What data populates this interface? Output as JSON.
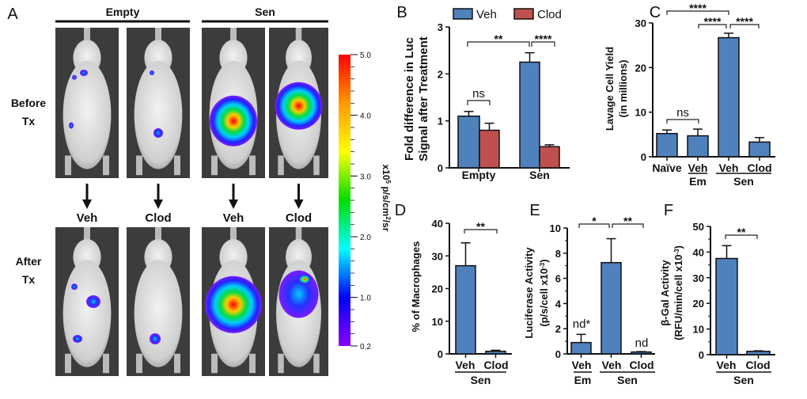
{
  "panel_a": {
    "label": "A",
    "groups": [
      "Empty",
      "Sen"
    ],
    "row_labels": [
      [
        "Before",
        "Tx"
      ],
      [
        "After",
        "Tx"
      ]
    ],
    "treatments": [
      "Veh",
      "Clod",
      "Veh",
      "Clod"
    ],
    "colorbar": {
      "ticks": [
        "5.0",
        "4.0",
        "3.0",
        "2.0",
        "1.0",
        "0.2"
      ],
      "unit_parts": [
        "x10",
        "5",
        " p/s/cm",
        "2",
        "/sr"
      ],
      "colors": [
        "#ff0000",
        "#ff9900",
        "#ffff00",
        "#00dd00",
        "#00ffff",
        "#0000ff",
        "#8800ff"
      ]
    }
  },
  "colors": {
    "veh": "#4f81bd",
    "clod": "#c0504d"
  },
  "chart_data": [
    {
      "panel": "B",
      "type": "bar",
      "categories": [
        "Empty",
        "Sen"
      ],
      "legend": [
        "Veh",
        "Clod"
      ],
      "legend_placement": "top",
      "series": [
        {
          "name": "Veh",
          "values": [
            1.1,
            2.25
          ],
          "errors": [
            0.1,
            0.2
          ]
        },
        {
          "name": "Clod",
          "values": [
            0.8,
            0.45
          ],
          "errors": [
            0.15,
            0.04
          ]
        }
      ],
      "ylabel": [
        "Fold difference in Luc",
        "Signal after Treatment"
      ],
      "ylim": [
        0,
        3
      ],
      "yticks": [
        "0",
        "1",
        "2",
        "3"
      ],
      "significance": [
        "ns",
        "**",
        "****"
      ]
    },
    {
      "panel": "C",
      "type": "bar",
      "categories": [
        "Naïve",
        "Veh",
        "Veh",
        "Clod"
      ],
      "groups": [
        "Em",
        "Sen"
      ],
      "values": [
        5.2,
        4.7,
        26.7,
        3.3
      ],
      "errors": [
        0.8,
        1.5,
        1.0,
        1.0
      ],
      "ylabel": [
        "Lavage Cell Yield",
        "(in millions)"
      ],
      "ylim": [
        0,
        30
      ],
      "yticks": [
        "0",
        "10",
        "20",
        "30"
      ],
      "significance": [
        "****",
        "****",
        "****",
        "ns"
      ]
    },
    {
      "panel": "D",
      "type": "bar",
      "categories": [
        "Veh",
        "Clod"
      ],
      "groups": [
        "Sen"
      ],
      "values": [
        27,
        0.8
      ],
      "errors": [
        7,
        0.3
      ],
      "ylabel": [
        "% of Macrophages"
      ],
      "ylim": [
        0,
        40
      ],
      "yticks": [
        "0",
        "10",
        "20",
        "30",
        "40"
      ],
      "significance": [
        "**"
      ]
    },
    {
      "panel": "E",
      "type": "bar",
      "categories": [
        "Veh",
        "Veh",
        "Clod"
      ],
      "groups": [
        "Em",
        "Sen"
      ],
      "values": [
        0.9,
        7.25,
        0.15
      ],
      "errors": [
        0.65,
        1.9,
        0.03
      ],
      "annotations": [
        "nd*",
        "",
        "nd"
      ],
      "ylabel": [
        "Luciferase Activity",
        "(p/s/cell x10",
        "-3",
        ")"
      ],
      "ylim": [
        0,
        10
      ],
      "yticks": [
        "0",
        "2",
        "4",
        "6",
        "8",
        "10"
      ],
      "significance": [
        "*",
        "**"
      ]
    },
    {
      "panel": "F",
      "type": "bar",
      "categories": [
        "Veh",
        "Clod"
      ],
      "groups": [
        "Sen"
      ],
      "values": [
        37.5,
        1.3
      ],
      "errors": [
        5,
        0.2
      ],
      "ylabel": [
        "β-Gal Activity",
        "(RFU/min/cell x10",
        "-3",
        ")"
      ],
      "ylim": [
        0,
        50
      ],
      "yticks": [
        "0",
        "10",
        "20",
        "30",
        "40",
        "50"
      ],
      "significance": [
        "**"
      ]
    }
  ]
}
